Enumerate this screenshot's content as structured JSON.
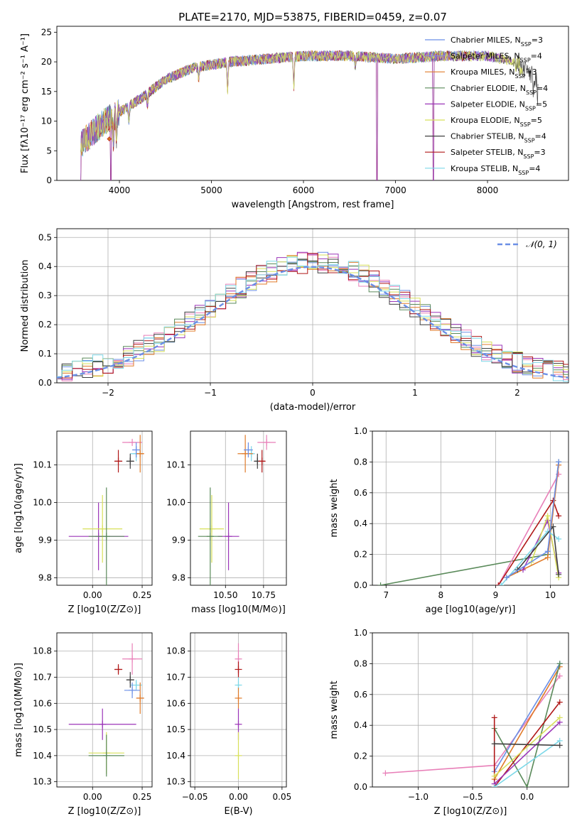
{
  "title": "PLATE=2170, MJD=53875, FIBERID=0459, z=0.07",
  "colors": {
    "cmiles": "#6b8fe6",
    "smiles": "#8c8cd0",
    "kmiles": "#e07b2a",
    "celodie": "#5a8a5a",
    "selodie": "#9b35b8",
    "kelodie": "#d8e05a",
    "cstelib": "#404040",
    "sstelib": "#b01818",
    "kstelib": "#7dd8e8",
    "pink": "#e87fb8",
    "grid": "#b0b0b0"
  },
  "legend_spectrum": [
    {
      "label": "Chabrier MILES, N",
      "sub": "SSP",
      "tail": "=3",
      "color": "cmiles"
    },
    {
      "label": "Salpeter MILES, N",
      "sub": "SSP",
      "tail": "=4",
      "color": "smiles"
    },
    {
      "label": "Kroupa MILES, N",
      "sub": "SSP",
      "tail": "=3",
      "color": "kmiles"
    },
    {
      "label": "Chabrier ELODIE, N",
      "sub": "SSP",
      "tail": "=4",
      "color": "celodie"
    },
    {
      "label": "Salpeter ELODIE, N",
      "sub": "SSP",
      "tail": "=5",
      "color": "selodie"
    },
    {
      "label": "Kroupa ELODIE, N",
      "sub": "SSP",
      "tail": "=5",
      "color": "kelodie"
    },
    {
      "label": "Chabrier STELIB, N",
      "sub": "SSP",
      "tail": "=4",
      "color": "cstelib"
    },
    {
      "label": "Salpeter STELIB, N",
      "sub": "SSP",
      "tail": "=3",
      "color": "sstelib"
    },
    {
      "label": "Kroupa STELIB, N",
      "sub": "SSP",
      "tail": "=4",
      "color": "kstelib"
    }
  ],
  "chart_data": [
    {
      "id": "spectrum",
      "type": "line",
      "xlabel": "wavelength [Angstrom, rest frame]",
      "ylabel": "Flux [fλ10⁻¹⁷ erg cm⁻² s⁻¹ A⁻¹]",
      "xlim": [
        3320,
        8880
      ],
      "ylim": [
        0,
        26
      ],
      "xticks": [
        4000,
        5000,
        6000,
        7000,
        8000
      ],
      "yticks": [
        0,
        5,
        10,
        15,
        20,
        25
      ],
      "continuum": [
        [
          3580,
          6
        ],
        [
          3700,
          8
        ],
        [
          3850,
          10
        ],
        [
          4000,
          11.5
        ],
        [
          4250,
          14
        ],
        [
          4500,
          17
        ],
        [
          4800,
          19
        ],
        [
          5200,
          20
        ],
        [
          5600,
          20.5
        ],
        [
          6000,
          21
        ],
        [
          6500,
          21
        ],
        [
          7000,
          20.5
        ],
        [
          7500,
          21
        ],
        [
          8000,
          21
        ],
        [
          8300,
          20
        ],
        [
          8550,
          17
        ]
      ],
      "absorption": [
        [
          3934,
          4
        ],
        [
          3968,
          4
        ],
        [
          4102,
          2.5
        ],
        [
          4304,
          2
        ],
        [
          4861,
          2
        ],
        [
          5175,
          5
        ],
        [
          5895,
          5
        ],
        [
          6563,
          1.5
        ],
        [
          8498,
          3
        ],
        [
          8542,
          3
        ],
        [
          8662,
          3
        ]
      ],
      "dips_to_zero": [
        3580,
        3905,
        6800,
        7410
      ],
      "marker": [
        3890,
        7
      ]
    },
    {
      "id": "residuals",
      "type": "histogram",
      "xlabel": "(data-model)/error",
      "ylabel": "Normed distribution",
      "xlim": [
        -2.5,
        2.5
      ],
      "ylim": [
        0,
        0.53
      ],
      "xticks": [
        -2,
        -1,
        0,
        1,
        2
      ],
      "yticks": [
        0,
        0.1,
        0.2,
        0.3,
        0.4,
        0.5
      ],
      "reference_label": "N(0,1)",
      "reference_label_math": "𝒩(0, 1)"
    },
    {
      "id": "age-vs-Z",
      "type": "scatter",
      "xlabel": "Z [log10(Z/Z⊙)]",
      "ylabel": "age  [log10(age/yr)]",
      "xlim": [
        -0.18,
        0.3
      ],
      "ylim": [
        9.78,
        10.19
      ],
      "xticks": [
        0,
        0.25
      ],
      "yticks": [
        9.8,
        9.9,
        10.0,
        10.1
      ],
      "points": [
        {
          "c": "pink",
          "x": 0.2,
          "xe": 0.05,
          "y": 10.16,
          "ye": 0.0
        },
        {
          "c": "kstelib",
          "x": 0.22,
          "xe": 0.03,
          "y": 10.13,
          "ye": 0.02
        },
        {
          "c": "kmiles",
          "x": 0.24,
          "xe": 0.02,
          "y": 10.13,
          "ye": 0.05
        },
        {
          "c": "cmiles",
          "x": 0.22,
          "xe": 0.02,
          "y": 10.14,
          "ye": 0.02
        },
        {
          "c": "cstelib",
          "x": 0.19,
          "xe": 0.02,
          "y": 10.11,
          "ye": 0.02
        },
        {
          "c": "sstelib",
          "x": 0.13,
          "xe": 0.02,
          "y": 10.11,
          "ye": 0.03
        },
        {
          "c": "selodie",
          "x": 0.03,
          "xe": 0.15,
          "y": 9.91,
          "ye": 0.09
        },
        {
          "c": "kelodie",
          "x": 0.05,
          "xe": 0.1,
          "y": 9.93,
          "ye": 0.09
        },
        {
          "c": "celodie",
          "x": 0.07,
          "xe": 0.09,
          "y": 9.91,
          "ye": 0.13
        }
      ]
    },
    {
      "id": "age-vs-mass",
      "type": "scatter",
      "xlabel": "mass [log10(M/M⊙)]",
      "ylabel": "",
      "xlim": [
        10.27,
        10.9
      ],
      "ylim": [
        9.78,
        10.19
      ],
      "xticks": [
        10.5,
        10.75
      ],
      "yticks": [
        9.8,
        9.9,
        10.0,
        10.1
      ],
      "points": [
        {
          "c": "pink",
          "x": 10.77,
          "xe": 0.06,
          "y": 10.16,
          "ye": 0.02
        },
        {
          "c": "kstelib",
          "x": 10.67,
          "xe": 0.02,
          "y": 10.13,
          "ye": 0.02
        },
        {
          "c": "kmiles",
          "x": 10.63,
          "xe": 0.05,
          "y": 10.13,
          "ye": 0.05
        },
        {
          "c": "cmiles",
          "x": 10.65,
          "xe": 0.03,
          "y": 10.14,
          "ye": 0.02
        },
        {
          "c": "cstelib",
          "x": 10.71,
          "xe": 0.02,
          "y": 10.11,
          "ye": 0.02
        },
        {
          "c": "sstelib",
          "x": 10.74,
          "xe": 0.02,
          "y": 10.11,
          "ye": 0.03
        },
        {
          "c": "selodie",
          "x": 10.52,
          "xe": 0.07,
          "y": 9.91,
          "ye": 0.09
        },
        {
          "c": "kelodie",
          "x": 10.41,
          "xe": 0.08,
          "y": 9.93,
          "ye": 0.09
        },
        {
          "c": "celodie",
          "x": 10.4,
          "xe": 0.08,
          "y": 9.91,
          "ye": 0.13
        }
      ]
    },
    {
      "id": "mass-weight-vs-age",
      "type": "line",
      "xlabel": "age  [log10(age/yr)]",
      "ylabel": "mass weight",
      "xlim": [
        6.75,
        10.33
      ],
      "ylim": [
        0,
        1
      ],
      "xticks": [
        7,
        8,
        9,
        10
      ],
      "yticks": [
        0,
        0.2,
        0.4,
        0.6,
        0.8,
        1.0
      ],
      "series": [
        {
          "c": "celodie",
          "x": [
            6.9,
            9.95,
            10.15
          ],
          "y": [
            0.0,
            0.2,
            0.8
          ]
        },
        {
          "c": "pink",
          "x": [
            9.05,
            10.15
          ],
          "y": [
            0.0,
            0.72
          ]
        },
        {
          "c": "sstelib",
          "x": [
            9.05,
            10.05,
            10.15
          ],
          "y": [
            0.0,
            0.55,
            0.45
          ]
        },
        {
          "c": "kmiles",
          "x": [
            9.2,
            9.95,
            10.15
          ],
          "y": [
            0.05,
            0.18,
            0.78
          ]
        },
        {
          "c": "selodie",
          "x": [
            9.5,
            9.95,
            10.15
          ],
          "y": [
            0.1,
            0.42,
            0.08
          ]
        },
        {
          "c": "kelodie",
          "x": [
            9.65,
            9.95,
            10.15
          ],
          "y": [
            0.15,
            0.45,
            0.05
          ]
        },
        {
          "c": "kstelib",
          "x": [
            9.1,
            9.95,
            10.15
          ],
          "y": [
            0.0,
            0.35,
            0.3
          ]
        },
        {
          "c": "cstelib",
          "x": [
            9.4,
            10.05,
            10.15
          ],
          "y": [
            0.1,
            0.38,
            0.07
          ]
        },
        {
          "c": "cmiles",
          "x": [
            9.2,
            9.95,
            10.15
          ],
          "y": [
            0.05,
            0.22,
            0.8
          ]
        }
      ]
    },
    {
      "id": "mass-vs-Z",
      "type": "scatter",
      "xlabel": "Z [log10(Z/Z⊙)]",
      "ylabel": "mass [log10(M/M⊙)]",
      "xlim": [
        -0.18,
        0.3
      ],
      "ylim": [
        10.28,
        10.87
      ],
      "xticks": [
        0,
        0.25
      ],
      "yticks": [
        10.3,
        10.4,
        10.5,
        10.6,
        10.7,
        10.8
      ],
      "points": [
        {
          "c": "pink",
          "x": 0.2,
          "xe": 0.05,
          "y": 10.77,
          "ye": 0.06
        },
        {
          "c": "kstelib",
          "x": 0.22,
          "xe": 0.03,
          "y": 10.67,
          "ye": 0.02
        },
        {
          "c": "kmiles",
          "x": 0.24,
          "xe": 0.02,
          "y": 10.62,
          "ye": 0.06
        },
        {
          "c": "cmiles",
          "x": 0.2,
          "xe": 0.04,
          "y": 10.65,
          "ye": 0.03
        },
        {
          "c": "cstelib",
          "x": 0.19,
          "xe": 0.02,
          "y": 10.69,
          "ye": 0.03
        },
        {
          "c": "sstelib",
          "x": 0.13,
          "xe": 0.02,
          "y": 10.73,
          "ye": 0.02
        },
        {
          "c": "selodie",
          "x": 0.05,
          "xe": 0.17,
          "y": 10.52,
          "ye": 0.06
        },
        {
          "c": "kelodie",
          "x": 0.07,
          "xe": 0.09,
          "y": 10.41,
          "ye": 0.08
        },
        {
          "c": "celodie",
          "x": 0.07,
          "xe": 0.09,
          "y": 10.4,
          "ye": 0.08
        }
      ]
    },
    {
      "id": "mass-vs-ebv",
      "type": "scatter",
      "xlabel": "E(B-V)",
      "ylabel": "",
      "xlim": [
        -0.055,
        0.055
      ],
      "ylim": [
        10.28,
        10.87
      ],
      "xticks": [
        -0.05,
        0.0,
        0.05
      ],
      "yticks": [
        10.3,
        10.4,
        10.5,
        10.6,
        10.7,
        10.8
      ],
      "points": [
        {
          "c": "pink",
          "x": 0.0,
          "xe": 0.0,
          "y": 10.77,
          "ye": 0.06
        },
        {
          "c": "sstelib",
          "x": 0.0,
          "xe": 0.0,
          "y": 10.73,
          "ye": 0.03
        },
        {
          "c": "kstelib",
          "x": 0.0,
          "xe": 0.0,
          "y": 10.67,
          "ye": 0.03
        },
        {
          "c": "kmiles",
          "x": 0.0,
          "xe": 0.0,
          "y": 10.62,
          "ye": 0.04
        },
        {
          "c": "selodie",
          "x": 0.0,
          "xe": 0.0,
          "y": 10.52,
          "ye": 0.06
        },
        {
          "c": "kelodie",
          "x": 0.0,
          "xe": 0.0,
          "y": 10.4,
          "ye": 0.09
        }
      ]
    },
    {
      "id": "mass-weight-vs-Z",
      "type": "line",
      "xlabel": "Z [log10(Z/Z⊙)]",
      "ylabel": "mass weight",
      "xlim": [
        -1.42,
        0.38
      ],
      "ylim": [
        0,
        1
      ],
      "xticks": [
        -1.0,
        -0.5,
        0.0
      ],
      "yticks": [
        0,
        0.2,
        0.4,
        0.6,
        0.8,
        1.0
      ],
      "series": [
        {
          "c": "pink",
          "x": [
            -1.3,
            -0.3,
            0.3
          ],
          "y": [
            0.09,
            0.14,
            0.72
          ]
        },
        {
          "c": "kmiles",
          "x": [
            -0.3,
            0.3
          ],
          "y": [
            0.05,
            0.78
          ]
        },
        {
          "c": "cmiles",
          "x": [
            -0.3,
            0.3
          ],
          "y": [
            0.1,
            0.8
          ]
        },
        {
          "c": "celodie",
          "x": [
            -0.3,
            0.0,
            0.3
          ],
          "y": [
            0.38,
            0.0,
            0.8
          ]
        },
        {
          "c": "sstelib",
          "x": [
            -0.3,
            -0.3,
            0.3
          ],
          "y": [
            0.45,
            0.0,
            0.55
          ]
        },
        {
          "c": "selodie",
          "x": [
            -0.3,
            0.3
          ],
          "y": [
            0.02,
            0.42
          ]
        },
        {
          "c": "kelodie",
          "x": [
            -0.3,
            0.3
          ],
          "y": [
            0.07,
            0.45
          ]
        },
        {
          "c": "kstelib",
          "x": [
            -0.3,
            0.3
          ],
          "y": [
            0.0,
            0.3
          ]
        },
        {
          "c": "cstelib",
          "x": [
            -0.3,
            0.3
          ],
          "y": [
            0.28,
            0.27
          ]
        }
      ]
    }
  ]
}
